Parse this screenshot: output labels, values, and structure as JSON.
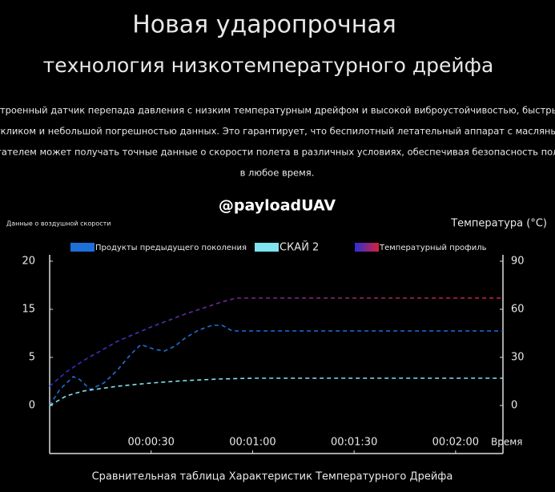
{
  "chart_data": {
    "type": "line",
    "title": "Новая ударопрочная",
    "subtitle": "технология низкотемпературного дрейфа",
    "description": [
      "Встроенный датчик перепада давления с низким температурным дрейфом и высокой виброустойчивостью, быстрым",
      "откликом и небольшой погрешностью данных. Это гарантирует, что беспилотный летательный аппарат с масляным",
      "двигателем может получать точные данные о скорости полета в различных условиях, обеспечивая безопасность полета",
      "в любое время."
    ],
    "watermark": "@payloadUAV",
    "y_label": "Данные о воздушной скорости",
    "y2_label": "Температура (°C)",
    "x_label": "Время",
    "caption": "Сравнительная таблица Характеристик Температурного Дрейфа",
    "y_tick_labels": [
      "0",
      "5",
      "15",
      "20"
    ],
    "xlim": [
      0,
      134
    ],
    "xticks": [
      {
        "value": 30,
        "label": "00:00:30"
      },
      {
        "value": 60,
        "label": "00:01:00"
      },
      {
        "value": 90,
        "label": "00:01:30"
      },
      {
        "value": 120,
        "label": "00:02:00"
      }
    ],
    "y2lim": [
      -30,
      98
    ],
    "y2ticks": [
      0,
      30,
      60,
      90
    ],
    "series": [
      {
        "name": "Продукты предыдущего поколения",
        "color": "#1f6fd8",
        "axis": "y2",
        "x": [
          0,
          3,
          7,
          9,
          12,
          16,
          20,
          24,
          27,
          31,
          34,
          37,
          40,
          44,
          48,
          51,
          54,
          60,
          80,
          100,
          134
        ],
        "values": [
          0,
          10,
          18,
          16,
          10,
          14,
          22,
          32,
          38,
          35,
          34,
          37,
          42,
          47,
          50,
          50,
          46.5,
          46.5,
          46.5,
          46.5,
          46.5
        ]
      },
      {
        "name": "СКАЙ 2",
        "color": "#7fe3f2",
        "axis": "y2",
        "x": [
          0,
          5,
          10,
          20,
          30,
          40,
          50,
          60,
          80,
          100,
          134
        ],
        "values": [
          0,
          6,
          9,
          12,
          14,
          15.5,
          16.5,
          17,
          17,
          17,
          17
        ]
      },
      {
        "name": "Температурный профиль",
        "color": [
          "#2a30d8",
          "#d8203a"
        ],
        "axis": "y2",
        "x": [
          0,
          5,
          10,
          20,
          30,
          40,
          50,
          55,
          60,
          80,
          100,
          134
        ],
        "values": [
          12,
          21,
          28,
          40,
          49,
          57,
          64,
          67,
          67,
          67,
          67,
          67
        ]
      }
    ]
  }
}
